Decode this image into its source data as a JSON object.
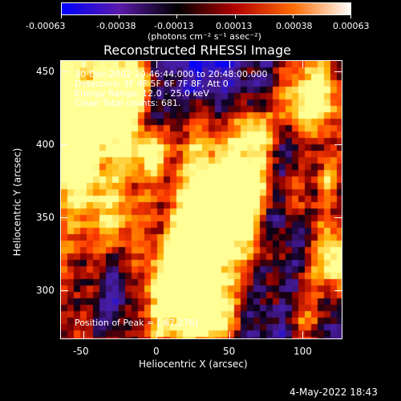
{
  "colorbar": {
    "tick_labels": [
      "-0.00063",
      "-0.00038",
      "-0.00013",
      "0.00013",
      "0.00038",
      "0.00063"
    ],
    "units_label": "(photons cm⁻² s⁻¹ asec⁻²)",
    "colors": [
      "#0000ff",
      "#5a1aa8",
      "#000000",
      "#b20000",
      "#ff6a00",
      "#ffffff"
    ]
  },
  "plot": {
    "title": "Reconstructed RHESSI Image",
    "xlabel": "Heliocentric X (arcsec)",
    "ylabel": "Heliocentric Y (arcsec)",
    "x_ticks": [
      "-50",
      "0",
      "50",
      "100"
    ],
    "y_ticks": [
      "450",
      "400",
      "350",
      "300"
    ],
    "annotations": [
      "30-Dec-2002 20:46:44.000 to 20:48:00.000",
      "Detectors: 3F 4F 5F 6F 7F 8F, Att 0",
      "Energy Range: 12.0 - 25.0 keV",
      "Clean    Total counts: 681."
    ],
    "peak_label": "Position of Peak = [-67,276]"
  },
  "footer": {
    "timestamp": "4-May-2022 18:43"
  }
}
